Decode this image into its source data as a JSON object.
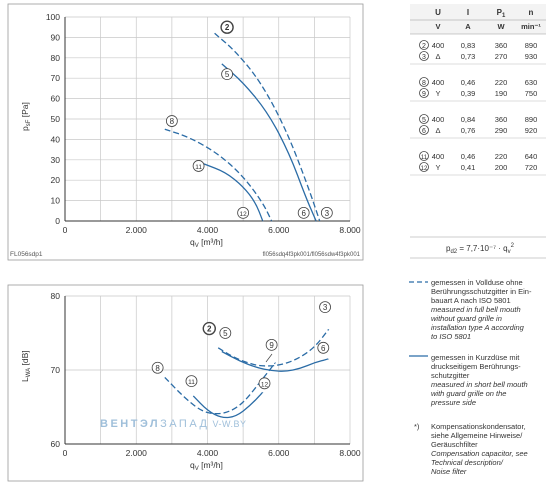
{
  "colors": {
    "curve": "#2b6ca6",
    "grid": "#c8c8c8",
    "axis": "#333333",
    "watermark": "#9fbfda"
  },
  "chart_data": [
    {
      "type": "line",
      "xlabel_parts": [
        "q",
        "V",
        " [m³/h]"
      ],
      "ylabel_parts": [
        "p",
        "sF",
        " [Pa]"
      ],
      "xlim": [
        0,
        8000
      ],
      "ylim": [
        0,
        100
      ],
      "x_ticks": [
        "0",
        "2.000",
        "4.000",
        "6.000",
        "8.000"
      ],
      "y_ticks": [
        "0",
        "10",
        "20",
        "30",
        "40",
        "50",
        "60",
        "70",
        "80",
        "90",
        "100"
      ],
      "grid": true,
      "footer_left": "FL056sdp1",
      "footer_right": "fl056sdq4f3pk001/fl056sdw4f3pk001",
      "series": [
        {
          "label": "2",
          "style": "dashed",
          "bold_label": true,
          "x": [
            4200,
            4800,
            5500,
            6200,
            6800,
            7150
          ],
          "y": [
            92,
            83,
            68,
            45,
            18,
            0
          ],
          "label_x": 4550,
          "label_y": 95
        },
        {
          "label": "5",
          "style": "solid",
          "x": [
            4400,
            5000,
            5700,
            6300,
            6750,
            7050
          ],
          "y": [
            77,
            68,
            53,
            33,
            12,
            0
          ],
          "label_x": 4550,
          "label_y": 72
        },
        {
          "label": "8",
          "style": "dashed",
          "x": [
            2800,
            3500,
            4300,
            5000,
            5550,
            5800
          ],
          "y": [
            45,
            41,
            33,
            22,
            9,
            0
          ],
          "label_x": 3000,
          "label_y": 49
        },
        {
          "label": "11",
          "style": "solid",
          "x": [
            3900,
            4500,
            5000,
            5350,
            5550
          ],
          "y": [
            28,
            24,
            17,
            9,
            0
          ],
          "label_x": 3750,
          "label_y": 27
        },
        {
          "label": "12",
          "style": "none",
          "x": [],
          "y": [],
          "label_x": 5000,
          "label_y": 4
        },
        {
          "label": "6",
          "style": "none",
          "x": [],
          "y": [],
          "label_x": 6700,
          "label_y": 4
        },
        {
          "label": "3",
          "style": "none",
          "x": [],
          "y": [],
          "label_x": 7350,
          "label_y": 4
        }
      ]
    },
    {
      "type": "line",
      "xlabel_parts": [
        "q",
        "V",
        " [m³/h]"
      ],
      "ylabel_parts": [
        "L",
        "WA",
        " [dB]"
      ],
      "xlim": [
        0,
        8000
      ],
      "ylim": [
        60,
        80
      ],
      "x_ticks": [
        "0",
        "2.000",
        "4.000",
        "6.000",
        "8.000"
      ],
      "y_ticks": [
        "60",
        "70",
        "80"
      ],
      "grid": true,
      "series": [
        {
          "label": "2",
          "style": "dashed",
          "bold_label": true,
          "x": [
            4300,
            4700,
            5100,
            5500,
            6000,
            6500,
            7000,
            7400
          ],
          "y": [
            73,
            71.8,
            71,
            70.5,
            70.6,
            71.4,
            73,
            75.5
          ],
          "label_x": 4050,
          "label_y": 75.6
        },
        {
          "label": "5",
          "style": "solid",
          "x": [
            4400,
            4900,
            5400,
            5800,
            6200,
            6600,
            7000,
            7400
          ],
          "y": [
            72.5,
            71.2,
            70.3,
            69.9,
            69.8,
            70.2,
            71,
            71.5
          ],
          "label_x": 4500,
          "label_y": 75
        },
        {
          "label": "8",
          "style": "dashed",
          "x": [
            2800,
            3300,
            3800,
            4200,
            4600,
            5000,
            5500,
            5900
          ],
          "y": [
            69,
            66.5,
            64.5,
            64,
            64.3,
            65.5,
            68.5,
            71
          ],
          "label_x": 2600,
          "label_y": 70.3
        },
        {
          "label": "11",
          "style": "solid",
          "x": [
            3600,
            4000,
            4400,
            4800,
            5200,
            5550
          ],
          "y": [
            66.5,
            64.5,
            63.5,
            63.7,
            65.2,
            67
          ],
          "label_x": 3550,
          "label_y": 68.5
        },
        {
          "label": "3",
          "style": "none",
          "x": [],
          "y": [],
          "label_x": 7300,
          "label_y": 78.5
        },
        {
          "label": "6",
          "style": "none",
          "x": [],
          "y": [],
          "label_x": 7250,
          "label_y": 73
        },
        {
          "label": "9",
          "style": "none",
          "x": [],
          "y": [],
          "label_x": 5800,
          "label_y": 73.4
        },
        {
          "label": "12",
          "style": "none",
          "x": [],
          "y": [],
          "label_x": 5600,
          "label_y": 68.2
        }
      ],
      "watermark": {
        "a": "ВЕНТЭЛ",
        "b": "ЗАПАД",
        "c": " V-W.BY"
      }
    }
  ],
  "table": {
    "headers": [
      "U",
      "I",
      "P",
      "n"
    ],
    "p_sub": "1",
    "units": [
      "V",
      "A",
      "W",
      "min⁻¹"
    ],
    "groups": [
      [
        [
          "2",
          "400",
          "0,83",
          "360",
          "890"
        ],
        [
          "3",
          "Δ",
          "0,73",
          "270",
          "930"
        ]
      ],
      [
        [
          "8",
          "400",
          "0,46",
          "220",
          "630"
        ],
        [
          "9",
          "Y",
          "0,39",
          "190",
          "750"
        ]
      ],
      [
        [
          "5",
          "400",
          "0,84",
          "360",
          "890"
        ],
        [
          "6",
          "Δ",
          "0,76",
          "290",
          "920"
        ]
      ],
      [
        [
          "11",
          "400",
          "0,46",
          "220",
          "640"
        ],
        [
          "12",
          "Y",
          "0,41",
          "200",
          "720"
        ]
      ]
    ],
    "formula": {
      "p": "p",
      "sub1": "d2",
      "eq": " = 7,7·10⁻⁷ · q",
      "sub2": "v",
      "sup": "2"
    }
  },
  "legend": {
    "dashed": {
      "lines": [
        "gemessen in Vollduse ohne",
        "Berührungsschutzgitter in Ein-",
        "bauart A nach ISO 5801"
      ],
      "italic": [
        "measured in full bell mouth",
        "without guard grille in",
        "installation type A according",
        "to ISO 5801"
      ]
    },
    "solid": {
      "lines": [
        "gemessen in Kurzdüse mit",
        "druckseitigem Berührungs-",
        "schutzgitter"
      ],
      "italic": [
        "measured in short bell mouth",
        "with guard grille on the",
        "pressure side"
      ]
    },
    "note": {
      "mark": "*)",
      "lines": [
        "Kompensationskondensator,",
        "siehe Allgemeine Hinweise/",
        "Geräuschfilter"
      ],
      "italic": [
        "Compensation capacitor, see",
        "Technical description/",
        "Noise filter"
      ]
    }
  }
}
